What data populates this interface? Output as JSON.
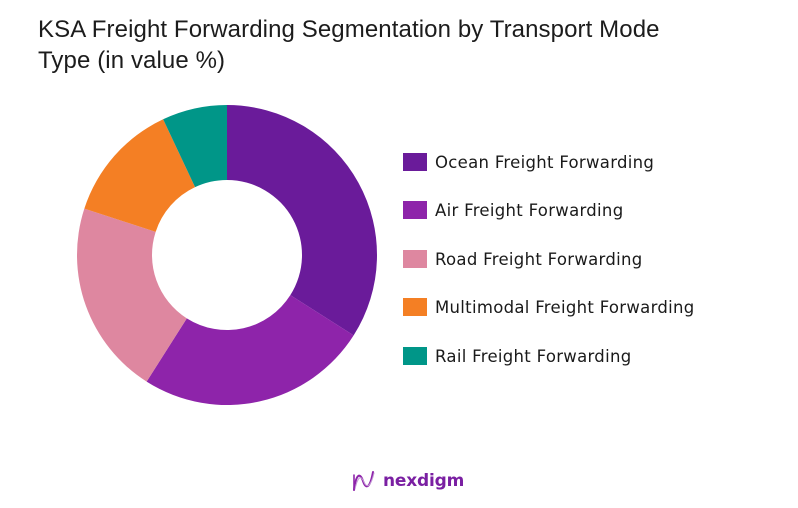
{
  "chart_data": {
    "type": "pie",
    "subtype": "donut",
    "title": "KSA Freight Forwarding Segmentation by Transport Mode Type (in value %)",
    "categories": [
      "Ocean Freight Forwarding",
      "Air Freight Forwarding",
      "Road Freight Forwarding",
      "Multimodal Freight Forwarding",
      "Rail Freight Forwarding"
    ],
    "values": [
      34,
      25,
      21,
      13,
      7
    ],
    "colors": [
      "#6a1b9a",
      "#8e24aa",
      "#de87a0",
      "#f47f24",
      "#009688"
    ],
    "unit": "%",
    "start_angle": "12 o'clock, clockwise",
    "legend_position": "right",
    "data_labels": false
  },
  "title": {
    "line1": "KSA Freight Forwarding Segmentation by Transport Mode",
    "line2": "Type (in value %)"
  },
  "legend": {
    "items": [
      {
        "label": "Ocean Freight Forwarding",
        "color": "#6a1b9a"
      },
      {
        "label": "Air Freight Forwarding",
        "color": "#8e24aa"
      },
      {
        "label": "Road Freight Forwarding",
        "color": "#de87a0"
      },
      {
        "label": "Multimodal Freight Forwarding",
        "color": "#f47f24"
      },
      {
        "label": "Rail Freight Forwarding",
        "color": "#009688"
      }
    ]
  },
  "logo": {
    "icon": "nexdigm-wave-icon",
    "text": "nexdigm",
    "color": "#7a1fa2"
  }
}
